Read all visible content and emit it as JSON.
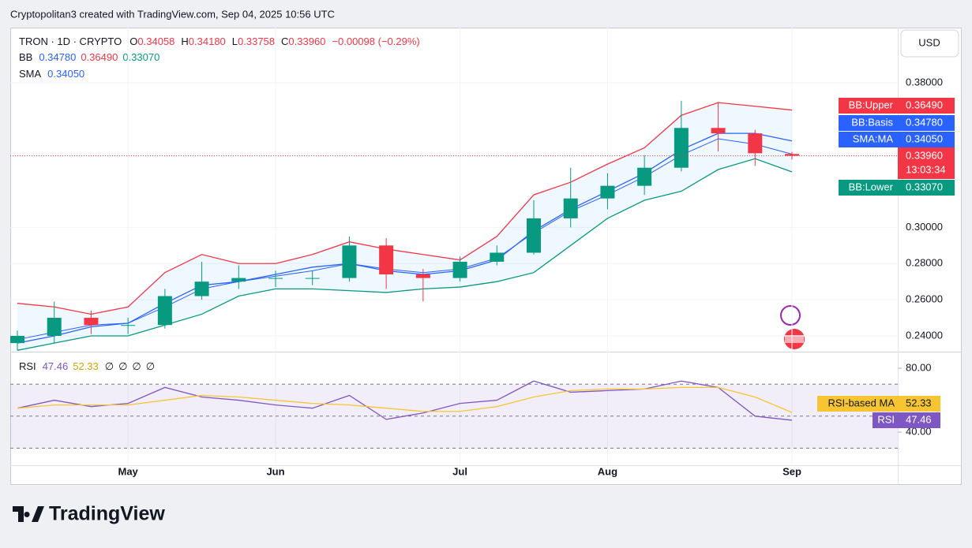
{
  "header": {
    "attribution": "Cryptopolitan3 created with TradingView.com, Sep 04, 2025 10:56 UTC",
    "logo": "TradingView"
  },
  "chart_data": {
    "type": "candlestick",
    "symbol": "TRON · 1D · CRYPTO",
    "currency": "USD",
    "ohlc_legend": [
      {
        "key": "O",
        "value": "0.34058"
      },
      {
        "key": "H",
        "value": "0.34180"
      },
      {
        "key": "L",
        "value": "0.33758"
      },
      {
        "key": "C",
        "value": "0.33960"
      },
      {
        "key": "",
        "value": "−0.00098 (−0.29%)"
      }
    ],
    "bb_legend": {
      "name": "BB",
      "values": [
        "0.34780",
        "0.36490",
        "0.33070"
      ]
    },
    "sma_legend": {
      "name": "SMA",
      "values": [
        "0.34050"
      ]
    },
    "categories": [
      null,
      null,
      null,
      "May",
      null,
      null,
      null,
      "Jun",
      null,
      null,
      null,
      null,
      "Jul",
      null,
      null,
      null,
      "Aug",
      null,
      null,
      null,
      null,
      "Sep"
    ],
    "open": [
      0.236,
      0.24,
      0.25,
      0.246,
      0.246,
      0.262,
      0.27,
      0.272,
      0.272,
      0.272,
      0.29,
      0.274,
      0.272,
      0.281,
      0.286,
      0.305,
      0.316,
      0.323,
      0.333,
      0.355,
      0.352,
      0.34058
    ],
    "high": [
      0.243,
      0.259,
      0.254,
      0.25,
      0.266,
      0.281,
      0.279,
      0.276,
      0.276,
      0.295,
      0.294,
      0.277,
      0.284,
      0.29,
      0.315,
      0.333,
      0.33,
      0.34,
      0.37,
      0.369,
      0.354,
      0.3418
    ],
    "low": [
      0.232,
      0.236,
      0.241,
      0.241,
      0.244,
      0.26,
      0.266,
      0.267,
      0.268,
      0.27,
      0.266,
      0.259,
      0.27,
      0.279,
      0.285,
      0.3,
      0.31,
      0.318,
      0.331,
      0.342,
      0.334,
      0.33758
    ],
    "close": [
      0.24,
      0.25,
      0.246,
      0.246,
      0.262,
      0.27,
      0.272,
      0.272,
      0.272,
      0.29,
      0.274,
      0.272,
      0.281,
      0.286,
      0.305,
      0.316,
      0.323,
      0.333,
      0.355,
      0.352,
      0.341,
      0.3396
    ],
    "up_color": "#089981",
    "down_color": "#f23645",
    "series": [
      {
        "name": "BB:Upper",
        "color": "#f23645",
        "values": [
          0.258,
          0.256,
          0.252,
          0.256,
          0.275,
          0.285,
          0.28,
          0.28,
          0.285,
          0.292,
          0.288,
          0.285,
          0.282,
          0.295,
          0.318,
          0.325,
          0.335,
          0.344,
          0.362,
          0.369,
          0.367,
          0.3649
        ]
      },
      {
        "name": "BB:Basis",
        "color": "#2962ff",
        "values": [
          0.236,
          0.24,
          0.245,
          0.247,
          0.258,
          0.268,
          0.27,
          0.274,
          0.278,
          0.28,
          0.276,
          0.274,
          0.276,
          0.282,
          0.298,
          0.31,
          0.32,
          0.33,
          0.343,
          0.352,
          0.352,
          0.3478
        ]
      },
      {
        "name": "SMA:MA",
        "color": "#2962ff",
        "values": [
          0.238,
          0.242,
          0.246,
          0.247,
          0.256,
          0.266,
          0.27,
          0.273,
          0.276,
          0.28,
          0.277,
          0.275,
          0.277,
          0.283,
          0.297,
          0.309,
          0.318,
          0.328,
          0.34,
          0.349,
          0.346,
          0.3405
        ]
      },
      {
        "name": "BB:Lower",
        "color": "#089981",
        "values": [
          0.232,
          0.236,
          0.24,
          0.24,
          0.246,
          0.252,
          0.262,
          0.266,
          0.266,
          0.265,
          0.264,
          0.266,
          0.267,
          0.27,
          0.275,
          0.29,
          0.305,
          0.315,
          0.32,
          0.332,
          0.338,
          0.3307
        ]
      }
    ],
    "tags": [
      {
        "label": "BB:Upper",
        "value": "0.36490",
        "color": "#f23645"
      },
      {
        "label": "BB:Basis",
        "value": "0.34780",
        "color": "#2962ff"
      },
      {
        "label": "SMA:MA",
        "value": "0.34050",
        "color": "#2962ff"
      },
      {
        "label": "13:03:34",
        "value": "0.33960",
        "color": "#f23645"
      },
      {
        "label": "BB:Lower",
        "value": "0.33070",
        "color": "#089981"
      }
    ],
    "ylim": [
      0.2317,
      0.4105
    ],
    "yticks": [
      {
        "value": 0.24,
        "label": "0.24000"
      },
      {
        "value": 0.26,
        "label": "0.26000"
      },
      {
        "value": 0.28,
        "label": "0.28000"
      },
      {
        "value": 0.3,
        "label": "0.30000"
      },
      {
        "value": 0.38,
        "label": "0.38000"
      }
    ],
    "grid": true,
    "rsi": {
      "name": "RSI",
      "legend_values": [
        "47.46",
        "52.33"
      ],
      "legend_nulls": [
        "∅",
        "∅",
        "∅",
        "∅"
      ],
      "series": [
        {
          "name": "RSI",
          "color": "#7e57c2",
          "values": [
            55,
            60,
            56,
            58,
            68,
            62,
            60,
            57,
            55,
            63,
            48,
            52,
            58,
            60,
            72,
            65,
            66,
            67,
            72,
            68,
            50,
            47.46
          ]
        },
        {
          "name": "RSI-based MA",
          "color": "#f7c531",
          "values": [
            55,
            57,
            57,
            57,
            60,
            63,
            62,
            60,
            58,
            57,
            55,
            53,
            53,
            56,
            62,
            66,
            67,
            67,
            68,
            68,
            62,
            52.33
          ]
        }
      ],
      "tags": [
        {
          "label": "RSI-based MA",
          "value": "52.33",
          "color": "#f7c531"
        },
        {
          "label": "RSI",
          "value": "47.46",
          "color": "#7e57c2"
        }
      ],
      "hlines": [
        70,
        50,
        30
      ],
      "ylim": [
        19.3,
        89.4
      ],
      "yticks": [
        {
          "value": 80,
          "label": "80.00"
        },
        {
          "value": 40,
          "label": "40.00"
        }
      ]
    }
  }
}
